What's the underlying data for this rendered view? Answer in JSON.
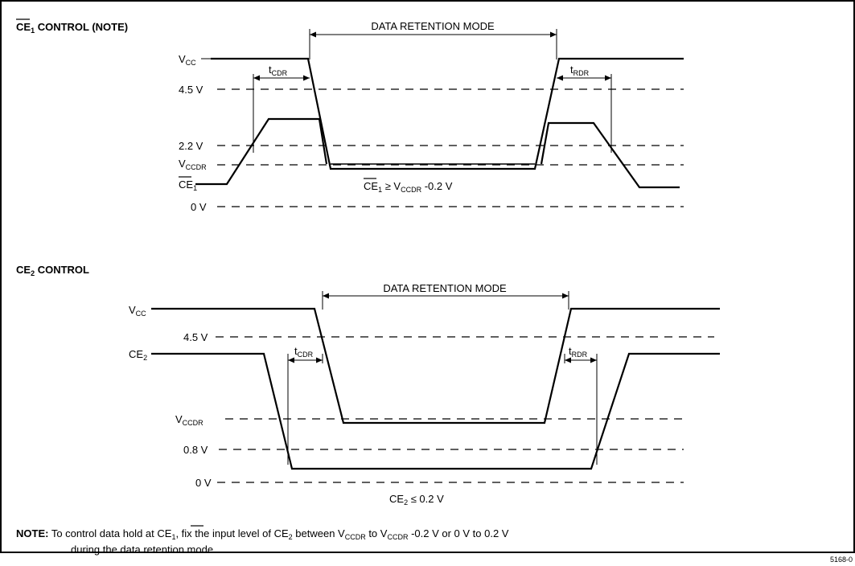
{
  "diagram1": {
    "title_ce": "CE",
    "title_sub": "1",
    "title_rest": " CONTROL (NOTE)",
    "mode_label": "DATA RETENTION MODE",
    "levels": {
      "vcc": "V",
      "vcc_sub": "CC",
      "v45": "4.5 V",
      "v22": "2.2 V",
      "vccdr": "V",
      "vccdr_sub": "CCDR",
      "ce1": "CE",
      "ce1_sub": "1",
      "v0": "0 V"
    },
    "tcdr": "t",
    "tcdr_sub": "CDR",
    "trdr": "t",
    "trdr_sub": "RDR",
    "cond_a": "CE",
    "cond_a_sub": "1",
    "cond_b": " ≥ V",
    "cond_b_sub": "CCDR",
    "cond_c": " -0.2 V"
  },
  "diagram2": {
    "title_ce": "CE",
    "title_sub": "2",
    "title_rest": " CONTROL",
    "mode_label": "DATA RETENTION MODE",
    "levels": {
      "vcc": "V",
      "vcc_sub": "CC",
      "v45": "4.5 V",
      "ce2": "CE",
      "ce2_sub": "2",
      "vccdr": "V",
      "vccdr_sub": "CCDR",
      "v08": "0.8 V",
      "v0": "0 V"
    },
    "tcdr": "t",
    "tcdr_sub": "CDR",
    "trdr": "t",
    "trdr_sub": "RDR",
    "cond_a": "CE",
    "cond_a_sub": "2",
    "cond_b": " ≤ 0.2 V"
  },
  "note": {
    "label": "NOTE:",
    "t1": " To control data hold at ",
    "ce": "CE",
    "ce_sub": "1",
    "t2": ", fix the input level of CE",
    "t2_sub": "2",
    "t3": " between V",
    "t3_sub": "CCDR",
    "t4": " to V",
    "t4_sub": "CCDR",
    "t5": " -0.2 V or 0 V to 0.2 V",
    "line2": "during the data retention mode."
  },
  "figure_id": "5168-0"
}
